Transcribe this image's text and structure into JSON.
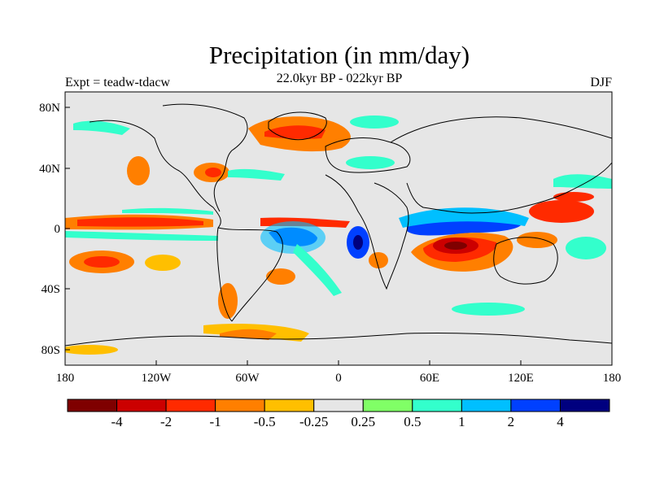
{
  "title": "Precipitation (in mm/day)",
  "subtitle": "22.0kyr BP - 022kyr BP",
  "left_label": "Expt = teadw-tdacw",
  "right_label": "DJF",
  "y_ticks": [
    "80N",
    "40N",
    "0",
    "40S",
    "80S"
  ],
  "x_ticks": [
    "180",
    "120W",
    "60W",
    "0",
    "60E",
    "120E",
    "180"
  ],
  "colorbar": {
    "colors": [
      "#7f0000",
      "#cc0000",
      "#ff2a00",
      "#ff7f00",
      "#ffbf00",
      "#e6e6e6",
      "#80ff66",
      "#33ffcc",
      "#00bfff",
      "#0040ff",
      "#00007f"
    ],
    "labels": [
      "-4",
      "-2",
      "-1",
      "-0.5",
      "-0.25",
      "0.25",
      "0.5",
      "1",
      "2",
      "4"
    ]
  },
  "colors": {
    "ocean_neutral": "#e6e6e6",
    "coastline": "#000000"
  }
}
